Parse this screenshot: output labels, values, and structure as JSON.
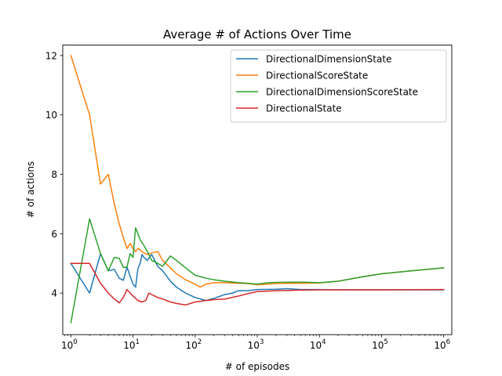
{
  "chart_data": {
    "type": "line",
    "title": "Average # of Actions Over Time",
    "xlabel": "# of episodes",
    "ylabel": "# of actions",
    "xscale": "log",
    "xlim": [
      0.74,
      1350000
    ],
    "ylim": [
      2.6,
      12.35
    ],
    "x_major_ticks": [
      {
        "value": 1,
        "base": "10",
        "exp": "0"
      },
      {
        "value": 10,
        "base": "10",
        "exp": "1"
      },
      {
        "value": 100,
        "base": "10",
        "exp": "2"
      },
      {
        "value": 1000,
        "base": "10",
        "exp": "3"
      },
      {
        "value": 10000,
        "base": "10",
        "exp": "4"
      },
      {
        "value": 100000,
        "base": "10",
        "exp": "5"
      },
      {
        "value": 1000000,
        "base": "10",
        "exp": "6"
      }
    ],
    "y_ticks": [
      {
        "value": 4,
        "label": "4"
      },
      {
        "value": 6,
        "label": "6"
      },
      {
        "value": 8,
        "label": "8"
      },
      {
        "value": 10,
        "label": "10"
      },
      {
        "value": 12,
        "label": "12"
      }
    ],
    "grid": false,
    "legend_position": "top-right",
    "series": [
      {
        "name": "DirectionalDimensionState",
        "color": "#1f77b4",
        "points": [
          [
            1,
            5.0
          ],
          [
            2,
            4.0
          ],
          [
            3,
            5.33
          ],
          [
            4,
            4.75
          ],
          [
            5,
            4.8
          ],
          [
            6,
            4.5
          ],
          [
            7,
            4.43
          ],
          [
            8,
            4.88
          ],
          [
            9,
            4.56
          ],
          [
            10,
            4.3
          ],
          [
            11,
            4.2
          ],
          [
            12,
            4.83
          ],
          [
            13,
            5.0
          ],
          [
            14,
            5.3
          ],
          [
            15,
            5.2
          ],
          [
            17,
            5.1
          ],
          [
            20,
            5.3
          ],
          [
            25,
            4.9
          ],
          [
            30,
            4.75
          ],
          [
            40,
            4.4
          ],
          [
            50,
            4.2
          ],
          [
            70,
            4.0
          ],
          [
            100,
            3.85
          ],
          [
            150,
            3.75
          ],
          [
            200,
            3.82
          ],
          [
            300,
            3.95
          ],
          [
            400,
            4.0
          ],
          [
            500,
            4.08
          ],
          [
            700,
            4.08
          ],
          [
            1000,
            4.12
          ],
          [
            2000,
            4.13
          ],
          [
            3000,
            4.15
          ],
          [
            5000,
            4.12
          ],
          [
            10000,
            4.12
          ],
          [
            30000,
            4.11
          ],
          [
            100000,
            4.11
          ],
          [
            300000,
            4.11
          ],
          [
            1000000,
            4.11
          ]
        ]
      },
      {
        "name": "DirectionalScoreState",
        "color": "#ff7f0e",
        "points": [
          [
            1,
            12.0
          ],
          [
            2,
            10.0
          ],
          [
            3,
            7.67
          ],
          [
            4,
            8.0
          ],
          [
            5,
            7.0
          ],
          [
            6,
            6.33
          ],
          [
            7,
            5.86
          ],
          [
            8,
            5.5
          ],
          [
            9,
            5.67
          ],
          [
            10,
            5.5
          ],
          [
            11,
            5.4
          ],
          [
            12,
            5.5
          ],
          [
            13,
            5.45
          ],
          [
            15,
            5.35
          ],
          [
            17,
            5.3
          ],
          [
            20,
            5.35
          ],
          [
            25,
            5.4
          ],
          [
            30,
            5.1
          ],
          [
            40,
            4.85
          ],
          [
            50,
            4.65
          ],
          [
            70,
            4.45
          ],
          [
            100,
            4.3
          ],
          [
            120,
            4.2
          ],
          [
            150,
            4.3
          ],
          [
            200,
            4.35
          ],
          [
            300,
            4.35
          ],
          [
            500,
            4.33
          ],
          [
            700,
            4.32
          ],
          [
            1000,
            4.28
          ],
          [
            2000,
            4.32
          ],
          [
            5000,
            4.33
          ],
          [
            10000,
            4.34
          ],
          [
            20000,
            4.4
          ],
          [
            50000,
            4.55
          ],
          [
            100000,
            4.65
          ],
          [
            300000,
            4.75
          ],
          [
            1000000,
            4.85
          ]
        ]
      },
      {
        "name": "DirectionalDimensionScoreState",
        "color": "#2ca02c",
        "points": [
          [
            1,
            3.0
          ],
          [
            2,
            6.5
          ],
          [
            3,
            5.33
          ],
          [
            4,
            4.75
          ],
          [
            5,
            5.2
          ],
          [
            6,
            5.17
          ],
          [
            7,
            4.86
          ],
          [
            8,
            4.88
          ],
          [
            9,
            5.33
          ],
          [
            10,
            5.2
          ],
          [
            11,
            6.2
          ],
          [
            12,
            6.0
          ],
          [
            13,
            5.8
          ],
          [
            15,
            5.6
          ],
          [
            17,
            5.4
          ],
          [
            20,
            5.1
          ],
          [
            25,
            5.0
          ],
          [
            30,
            4.9
          ],
          [
            40,
            5.25
          ],
          [
            50,
            5.1
          ],
          [
            70,
            4.85
          ],
          [
            100,
            4.6
          ],
          [
            150,
            4.5
          ],
          [
            200,
            4.45
          ],
          [
            300,
            4.4
          ],
          [
            500,
            4.35
          ],
          [
            700,
            4.33
          ],
          [
            1000,
            4.3
          ],
          [
            1500,
            4.35
          ],
          [
            2000,
            4.36
          ],
          [
            5000,
            4.37
          ],
          [
            10000,
            4.35
          ],
          [
            20000,
            4.4
          ],
          [
            50000,
            4.55
          ],
          [
            100000,
            4.65
          ],
          [
            300000,
            4.75
          ],
          [
            1000000,
            4.85
          ]
        ]
      },
      {
        "name": "DirectionalState",
        "color": "#d62728",
        "points": [
          [
            1,
            5.0
          ],
          [
            2,
            5.0
          ],
          [
            3,
            4.33
          ],
          [
            4,
            4.0
          ],
          [
            5,
            3.8
          ],
          [
            6,
            3.67
          ],
          [
            7,
            3.86
          ],
          [
            8,
            4.12
          ],
          [
            9,
            4.0
          ],
          [
            10,
            3.9
          ],
          [
            12,
            3.75
          ],
          [
            14,
            3.7
          ],
          [
            16,
            3.75
          ],
          [
            18,
            4.0
          ],
          [
            20,
            3.95
          ],
          [
            25,
            3.85
          ],
          [
            30,
            3.8
          ],
          [
            40,
            3.7
          ],
          [
            50,
            3.65
          ],
          [
            70,
            3.6
          ],
          [
            100,
            3.7
          ],
          [
            150,
            3.75
          ],
          [
            200,
            3.78
          ],
          [
            300,
            3.8
          ],
          [
            500,
            3.9
          ],
          [
            700,
            3.98
          ],
          [
            1000,
            4.05
          ],
          [
            2000,
            4.08
          ],
          [
            5000,
            4.1
          ],
          [
            10000,
            4.11
          ],
          [
            30000,
            4.11
          ],
          [
            100000,
            4.11
          ],
          [
            1000000,
            4.12
          ]
        ]
      }
    ]
  }
}
